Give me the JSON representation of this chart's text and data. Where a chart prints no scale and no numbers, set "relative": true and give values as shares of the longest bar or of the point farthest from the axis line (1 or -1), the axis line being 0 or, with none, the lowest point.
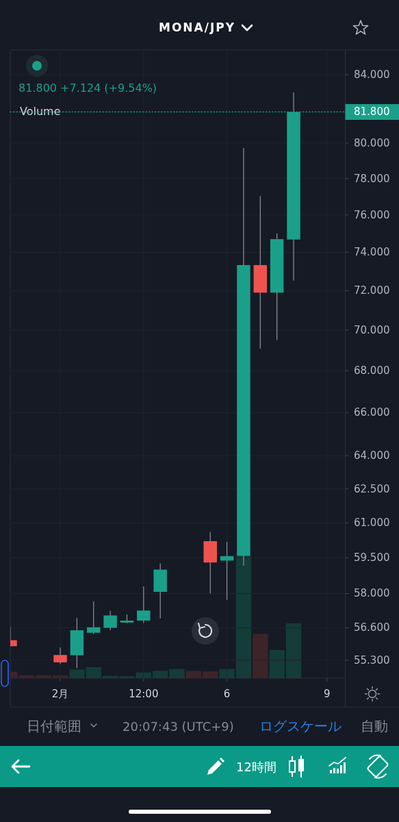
{
  "chart_data": [
    {
      "type": "candlestick",
      "title": "MONA/JPY",
      "categories": [
        null,
        null,
        null,
        "2月",
        null,
        null,
        null,
        null,
        "12:00",
        null,
        null,
        null,
        null,
        "6",
        null,
        null,
        null,
        null,
        null,
        "9"
      ],
      "ohlc": [
        [
          56.1,
          56.63,
          55.86,
          55.86
        ],
        null,
        null,
        [
          55.51,
          55.81,
          55.16,
          55.22
        ],
        [
          55.5,
          57.0,
          54.99,
          56.5
        ],
        [
          56.4,
          57.68,
          56.35,
          56.62
        ],
        [
          56.6,
          57.29,
          56.5,
          57.1
        ],
        [
          56.81,
          57.14,
          56.78,
          56.89
        ],
        [
          56.89,
          58.3,
          56.79,
          57.3
        ],
        [
          58.07,
          59.26,
          56.98,
          59.0
        ],
        null,
        null,
        [
          60.21,
          60.6,
          58.01,
          59.3
        ],
        [
          59.38,
          60.18,
          57.74,
          59.57
        ],
        [
          59.58,
          79.72,
          59.17,
          73.33
        ],
        [
          73.33,
          77.03,
          69.08,
          71.9
        ],
        [
          71.9,
          75.01,
          69.51,
          74.7
        ],
        [
          74.68,
          82.95,
          72.53,
          81.8
        ],
        null,
        null
      ],
      "colors": [
        "#ef5350",
        null,
        null,
        "#ef5350",
        "#1aa08a",
        "#1aa08a",
        "#1aa08a",
        "#1aa08a",
        "#1aa08a",
        "#1aa08a",
        null,
        null,
        "#ef5350",
        "#1aa08a",
        "#1aa08a",
        "#ef5350",
        "#1aa08a",
        "#1aa08a",
        null,
        null
      ],
      "log": true,
      "ylim": [
        54.6,
        85.5
      ],
      "yticks": [
        {
          "value": 84,
          "label": "84.000"
        },
        {
          "value": 80,
          "label": "80.000"
        },
        {
          "value": 78,
          "label": "78.000"
        },
        {
          "value": 76,
          "label": "76.000"
        },
        {
          "value": 74,
          "label": "74.000"
        },
        {
          "value": 72,
          "label": "72.000"
        },
        {
          "value": 70,
          "label": "70.000"
        },
        {
          "value": 68,
          "label": "68.000"
        },
        {
          "value": 66,
          "label": "66.000"
        },
        {
          "value": 64,
          "label": "64.000"
        },
        {
          "value": 62.5,
          "label": "62.500"
        },
        {
          "value": 61,
          "label": "61.000"
        },
        {
          "value": 59.5,
          "label": "59.500"
        },
        {
          "value": 58,
          "label": "58.000"
        },
        {
          "value": 56.6,
          "label": "56.600"
        },
        {
          "value": 55.3,
          "label": "55.300"
        }
      ],
      "grid": true,
      "ref_lines": [
        {
          "axis": "y",
          "value": 81.8,
          "label": "81.800",
          "color": "#1aa08a",
          "line_style": "dotted"
        }
      ],
      "annotations": [
        "81.800 +7.124 (+9.54%)",
        "日付範囲",
        "20:07:43 (UTC+9)",
        "ログスケール",
        "自動",
        "12時間"
      ]
    },
    {
      "type": "bar",
      "title": "Volume",
      "relative": true,
      "categories": [
        null,
        null,
        null,
        null,
        null,
        null,
        null,
        null,
        null,
        null,
        null,
        null,
        null,
        null,
        null,
        null,
        null,
        null,
        null,
        null
      ],
      "values": [
        0.052,
        0.024,
        0.024,
        0.024,
        0.071,
        0.09,
        0.019,
        0.015,
        0.047,
        0.06,
        0.075,
        0.06,
        0.056,
        0.075,
        1,
        0.363,
        0.231,
        0.449,
        null,
        null
      ],
      "colors": [
        "#3d2429",
        "#3d2429",
        "#3d2429",
        "#3d2429",
        "#143c39",
        "#143c39",
        "#143c39",
        "#143c39",
        "#143c39",
        "#143c39",
        "#143c39",
        "#3d2429",
        "#3d2429",
        "#143c39",
        "#143c39",
        "#3d2429",
        "#143c39",
        "#143c39",
        null,
        null
      ]
    }
  ]
}
